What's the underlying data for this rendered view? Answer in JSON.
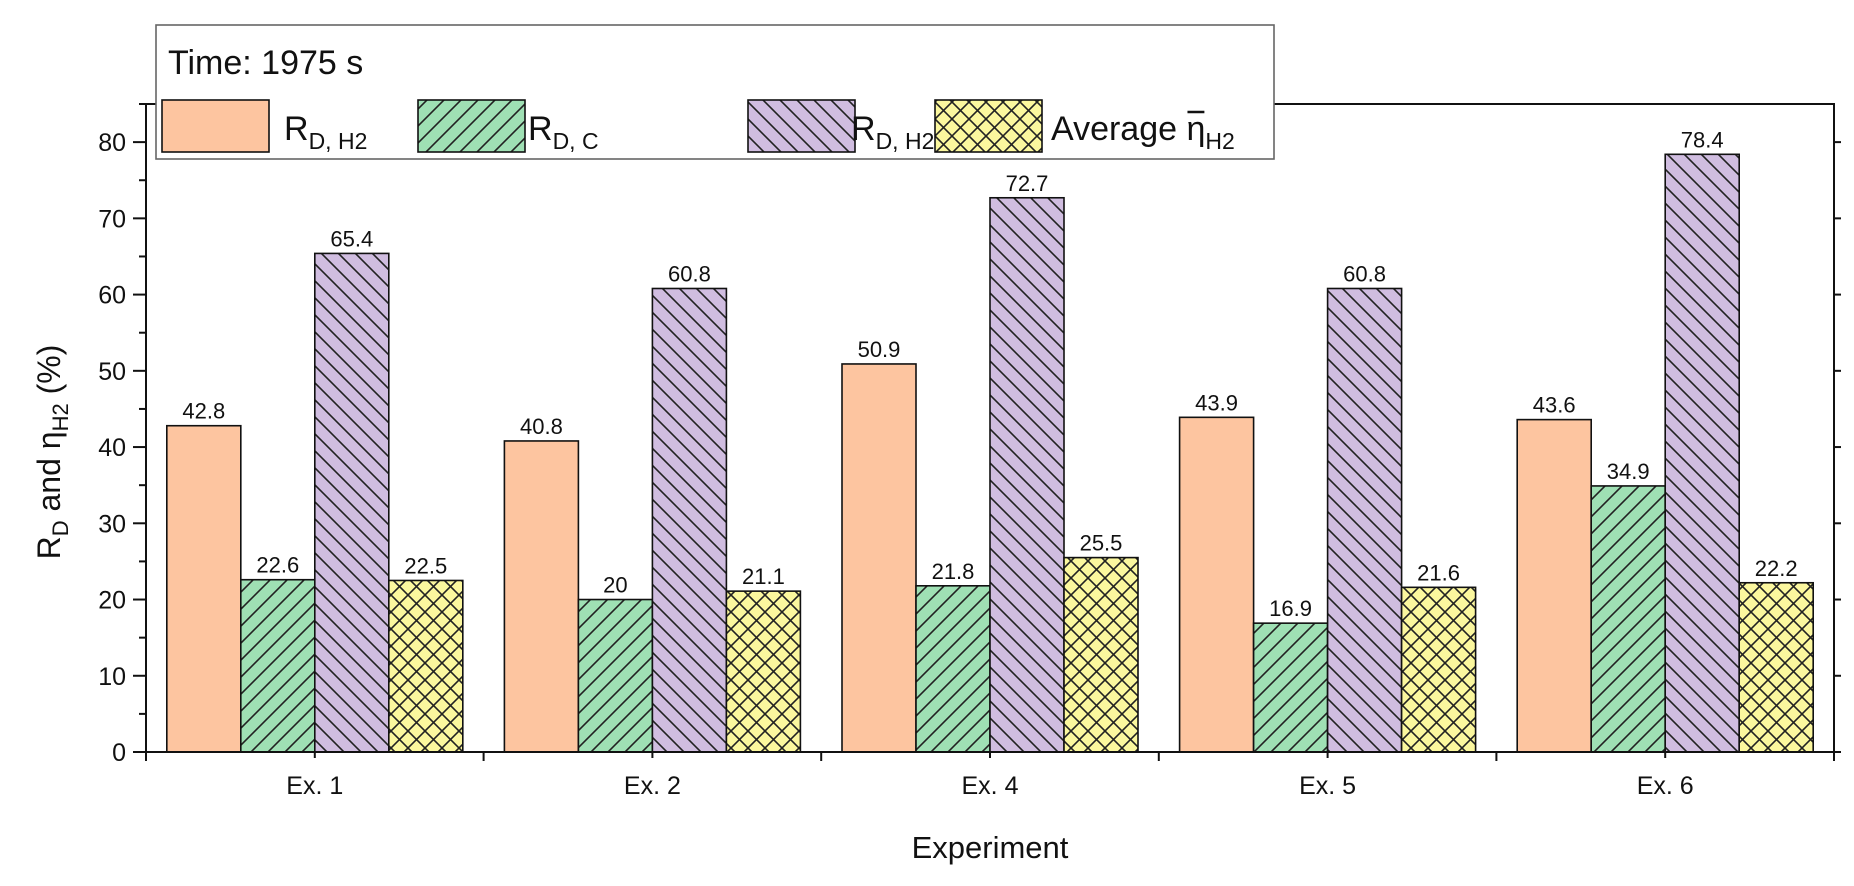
{
  "chart_data": {
    "type": "bar",
    "legend_title": "Time: 1975 s",
    "categories": [
      "Ex. 1",
      "Ex. 2",
      "Ex. 4",
      "Ex. 5",
      "Ex. 6"
    ],
    "series": [
      {
        "name": "R_{D, H2}",
        "name_parts": {
          "main": "R",
          "sub": "D,  H2"
        },
        "values": [
          42.8,
          40.8,
          50.9,
          43.9,
          43.6
        ],
        "value_labels": [
          "42.8",
          "40.8",
          "50.9",
          "43.9",
          "43.6"
        ],
        "fill": "#fdc5a0",
        "pattern": "none"
      },
      {
        "name": "R_{D, C}",
        "name_parts": {
          "main": "R",
          "sub": "D, C"
        },
        "values": [
          22.6,
          20,
          21.8,
          16.9,
          34.9
        ],
        "value_labels": [
          "22.6",
          "20",
          "21.8",
          "16.9",
          "34.9"
        ],
        "fill": "#9fe0b4",
        "pattern": "diagonal-up"
      },
      {
        "name": "R_{D, H2+C}",
        "name_parts": {
          "main": "R",
          "sub": "D,  H2+C"
        },
        "values": [
          65.4,
          60.8,
          72.7,
          60.8,
          78.4
        ],
        "value_labels": [
          "65.4",
          "60.8",
          "72.7",
          "60.8",
          "78.4"
        ],
        "fill": "#d0bde0",
        "pattern": "diagonal-down"
      },
      {
        "name": "Average η̄_{H2}",
        "name_parts": {
          "main": "Average ",
          "symbol": "η",
          "sub": "H2"
        },
        "values": [
          22.5,
          21.1,
          25.5,
          21.6,
          22.2
        ],
        "value_labels": [
          "22.5",
          "21.1",
          "25.5",
          "21.6",
          "22.2"
        ],
        "fill": "#fbf79e",
        "pattern": "crosshatch"
      }
    ],
    "xlabel": "Experiment",
    "ylabel_parts": {
      "main1": "R",
      "sub1": "D",
      "main2": " and η",
      "sub2": "H2",
      "main3": " (%)"
    },
    "ylim": [
      0,
      85
    ],
    "yticks": [
      0,
      10,
      20,
      30,
      40,
      50,
      60,
      70,
      80
    ],
    "minor_yticks": [
      5,
      15,
      25,
      35,
      45,
      55,
      65,
      75,
      85
    ],
    "grid": false,
    "legend_position": "top-left"
  }
}
